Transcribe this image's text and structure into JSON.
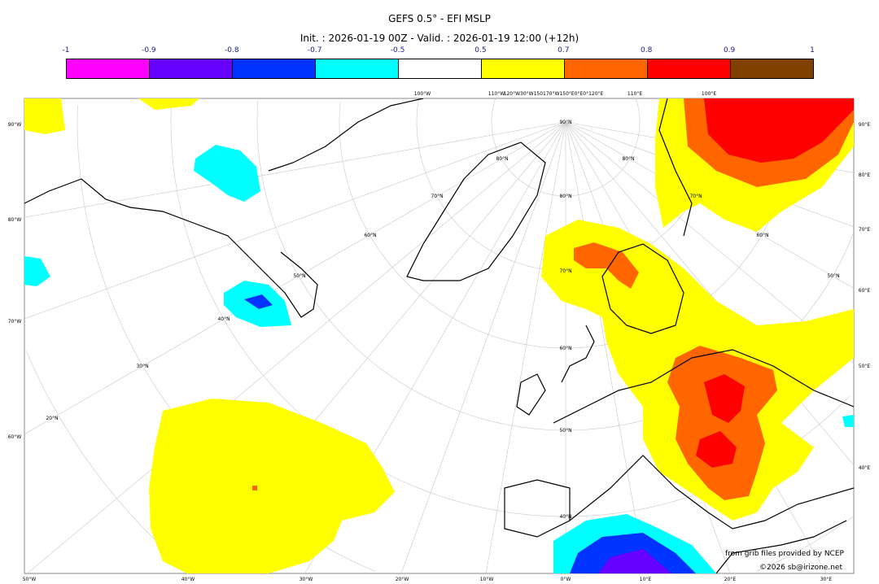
{
  "title": "GEFS 0.5° - EFI MSLP",
  "subtitle": "Init. : 2026-01-19 00Z - Valid. : 2026-01-19 12:00 (+12h)",
  "colorbar": {
    "labels": [
      "-1",
      "-0.9",
      "-0.8",
      "-0.7",
      "-0.5",
      "0.5",
      "0.7",
      "0.8",
      "0.9",
      "1"
    ],
    "colors": [
      "#ff00ff",
      "#6600ff",
      "#0033ff",
      "#00ffff",
      "#ffffff",
      "#ffff00",
      "#ff6600",
      "#ff0000",
      "#804000"
    ]
  },
  "axes": {
    "bottom": [
      "50°W",
      "40°W",
      "30°W",
      "20°W",
      "10°W",
      "0°W",
      "10°E",
      "20°E",
      "30°E"
    ],
    "left": [
      "90°W",
      "80°W",
      "70°W",
      "60°W"
    ],
    "right": [
      "90°E",
      "80°E",
      "70°E",
      "60°E",
      "50°E",
      "40°E"
    ],
    "top": [
      "100°W",
      "110°W",
      "120°W30°W150170°W150°E0°E0°120°E",
      "110°E",
      "100°E"
    ],
    "lat_center": [
      "90°N",
      "80°N",
      "70°N",
      "60°N",
      "50°N",
      "40°N"
    ],
    "lat_left": [
      "50°N",
      "40°N",
      "30°N",
      "20°N",
      "60°N",
      "70°N",
      "80°N"
    ],
    "lat_right": [
      "80°N",
      "70°N",
      "60°N",
      "50°N"
    ]
  },
  "credits": {
    "source": "from grib files provided by NCEP",
    "copyright": "©2026 sb@irizone.net"
  }
}
